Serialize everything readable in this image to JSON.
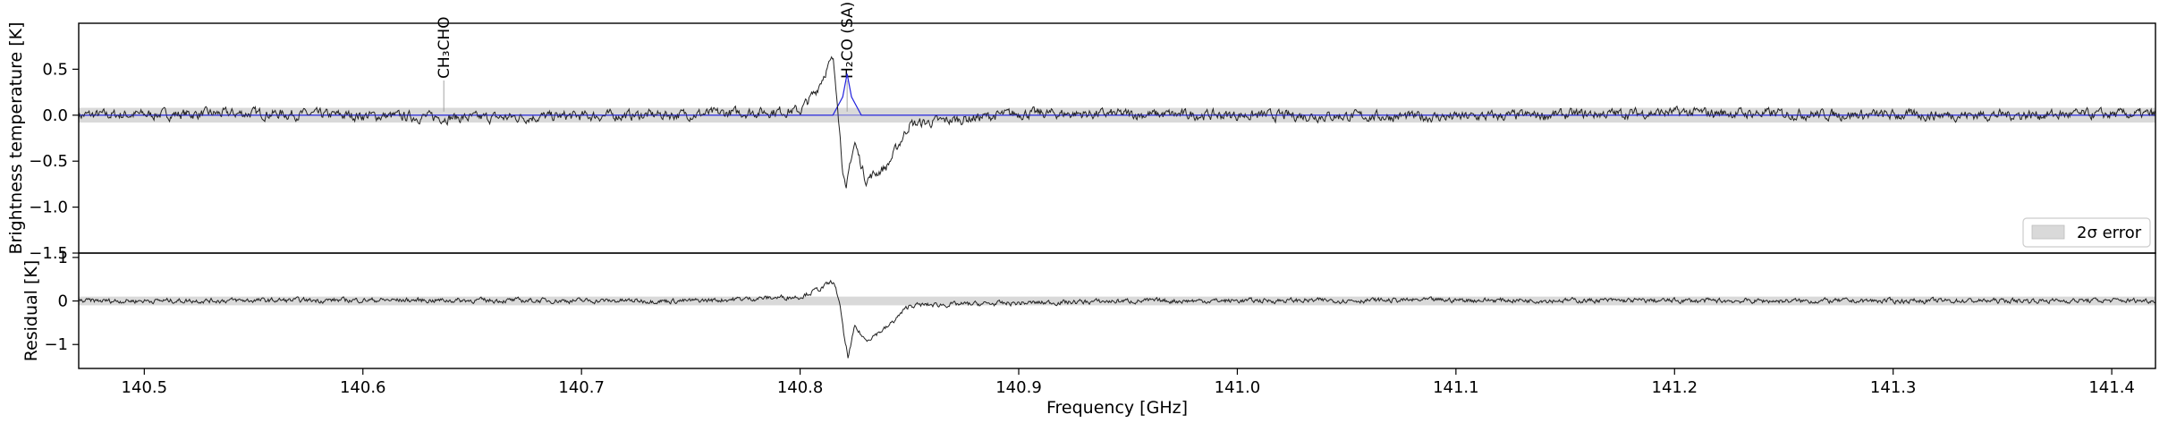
{
  "chart_data": [
    {
      "type": "line",
      "panel": "spectrum",
      "ylabel": "Brightness temperature [K]",
      "xlim": [
        140.47,
        141.42
      ],
      "ylim": [
        -1.5,
        1.0
      ],
      "yticks": [
        "0.5",
        "0.0",
        "−0.5",
        "−1.0",
        "−1.5"
      ],
      "ytick_values": [
        0.5,
        0.0,
        -0.5,
        -1.0,
        -1.5
      ],
      "error_band": [
        -0.08,
        0.08
      ],
      "legend": {
        "label": "2σ error",
        "placement": "lower-right"
      },
      "line_labels": [
        {
          "label": "CH₃CHO",
          "x": 140.637
        },
        {
          "label": "H₂CO (SA)",
          "x": 140.8215
        }
      ],
      "series": [
        {
          "x": [
            140.47,
            140.55,
            140.65,
            140.75,
            140.8,
            140.807,
            140.812,
            140.815,
            140.817,
            140.819,
            140.821,
            140.823,
            140.825,
            140.83,
            140.84,
            140.85,
            140.9,
            141.0,
            141.1,
            141.2,
            141.3,
            141.42
          ],
          "y": [
            0.0,
            0.02,
            -0.03,
            0.01,
            0.05,
            0.25,
            0.5,
            0.6,
            0.2,
            -0.45,
            -0.87,
            -0.5,
            -0.3,
            -0.7,
            -0.55,
            -0.1,
            0.02,
            0.0,
            -0.02,
            0.03,
            0.0,
            0.01
          ]
        },
        {
          "x": [
            140.47,
            140.815,
            140.8195,
            140.8215,
            140.8235,
            140.828,
            141.42
          ],
          "y": [
            0.0,
            0.0,
            0.2,
            0.45,
            0.2,
            0.0,
            0.0
          ],
          "color": "#2222dd"
        }
      ]
    },
    {
      "type": "line",
      "panel": "residual",
      "ylabel": "Residual [K]",
      "xlabel": "Frequency [GHz]",
      "xlim": [
        140.47,
        141.42
      ],
      "ylim": [
        -1.55,
        1.1
      ],
      "yticks": [
        "1",
        "0",
        "−1"
      ],
      "ytick_values": [
        1,
        0,
        -1
      ],
      "xticks": [
        "140.5",
        "140.6",
        "140.7",
        "140.8",
        "140.9",
        "141.0",
        "141.1",
        "141.2",
        "141.3",
        "141.4"
      ],
      "xtick_values": [
        140.5,
        140.6,
        140.7,
        140.8,
        140.9,
        141.0,
        141.1,
        141.2,
        141.3,
        141.4
      ],
      "error_band": [
        -0.1,
        0.1
      ],
      "series": [
        {
          "x": [
            140.47,
            140.6,
            140.75,
            140.8,
            140.81,
            140.815,
            140.818,
            140.82,
            140.822,
            140.825,
            140.83,
            140.84,
            140.85,
            140.95,
            141.1,
            141.25,
            141.42
          ],
          "y": [
            0.0,
            0.02,
            0.0,
            0.1,
            0.3,
            0.45,
            0.0,
            -0.8,
            -1.3,
            -0.6,
            -0.9,
            -0.6,
            -0.1,
            0.0,
            0.02,
            0.0,
            0.01
          ]
        }
      ]
    }
  ]
}
